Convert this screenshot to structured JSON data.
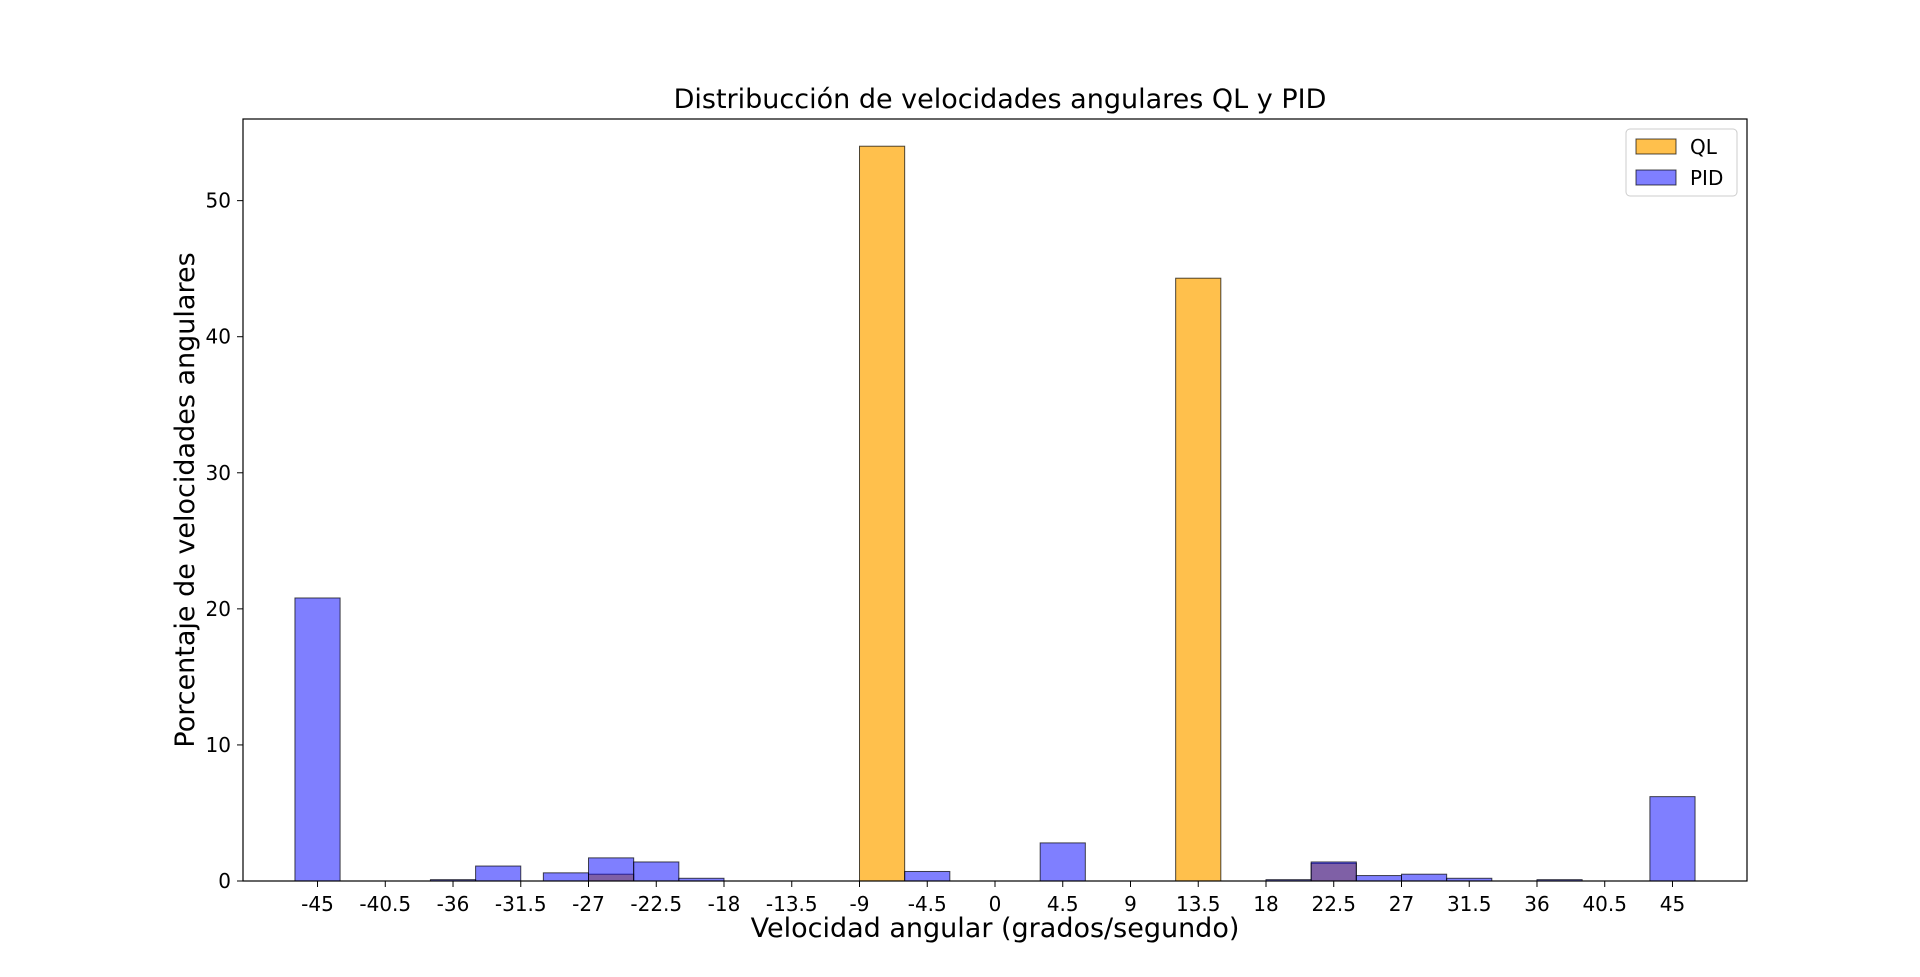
{
  "chart_data": {
    "type": "bar",
    "title": "Distribucción de velocidades angulares QL y PID",
    "xlabel": "Velocidad angular (grados/segundo)",
    "ylabel": "Porcentaje de velocidades angulares",
    "xlim": [
      -49.95,
      49.95
    ],
    "ylim": [
      0,
      56
    ],
    "bin_width": 3,
    "x_ticks": [
      -45,
      -40.5,
      -36,
      -31.5,
      -27,
      -22.5,
      -18,
      -13.5,
      -9,
      -4.5,
      0,
      4.5,
      9,
      13.5,
      18,
      22.5,
      27,
      31.5,
      36,
      40.5,
      45
    ],
    "x_tick_labels": [
      "-45",
      "-40.5",
      "-36",
      "-31.5",
      "-27",
      "-22.5",
      "-18",
      "-13.5",
      "-9",
      "-4.5",
      "0",
      "4.5",
      "9",
      "13.5",
      "18",
      "22.5",
      "27",
      "31.5",
      "36",
      "40.5",
      "45"
    ],
    "y_ticks": [
      0,
      10,
      20,
      30,
      40,
      50
    ],
    "y_tick_labels": [
      "0",
      "10",
      "20",
      "30",
      "40",
      "50"
    ],
    "legend_position": "top-right",
    "grid": false,
    "series": [
      {
        "name": "QL",
        "color": "#FFA500",
        "opacity": 0.7,
        "bins": [
          {
            "x": -25.5,
            "value": 0.5
          },
          {
            "x": -7.5,
            "value": 54.0
          },
          {
            "x": 13.5,
            "value": 44.3
          },
          {
            "x": 22.5,
            "value": 1.3
          }
        ]
      },
      {
        "name": "PID",
        "color": "#0000FF",
        "opacity": 0.5,
        "bins": [
          {
            "x": -45,
            "value": 20.8
          },
          {
            "x": -36,
            "value": 0.1
          },
          {
            "x": -33,
            "value": 1.1
          },
          {
            "x": -28.5,
            "value": 0.6
          },
          {
            "x": -25.5,
            "value": 1.7
          },
          {
            "x": -22.5,
            "value": 1.4
          },
          {
            "x": -19.5,
            "value": 0.2
          },
          {
            "x": -4.5,
            "value": 0.7
          },
          {
            "x": 4.5,
            "value": 2.8
          },
          {
            "x": 19.5,
            "value": 0.1
          },
          {
            "x": 22.5,
            "value": 1.4
          },
          {
            "x": 25.5,
            "value": 0.4
          },
          {
            "x": 28.5,
            "value": 0.5
          },
          {
            "x": 31.5,
            "value": 0.2
          },
          {
            "x": 37.5,
            "value": 0.1
          },
          {
            "x": 45,
            "value": 6.2
          }
        ]
      }
    ]
  }
}
